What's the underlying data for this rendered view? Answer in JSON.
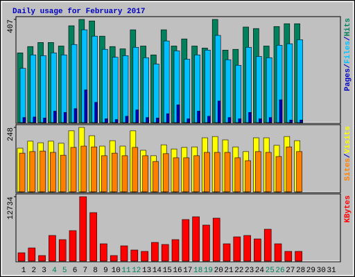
{
  "chart_data": {
    "type": "bar",
    "title": "Daily usage for February 2017",
    "categories": [
      "1",
      "2",
      "3",
      "4",
      "5",
      "6",
      "7",
      "8",
      "9",
      "10",
      "11",
      "12",
      "13",
      "14",
      "15",
      "16",
      "17",
      "18",
      "19",
      "20",
      "21",
      "22",
      "23",
      "24",
      "25",
      "26",
      "27",
      "28",
      "29",
      "30",
      "31"
    ],
    "category_colors": [
      "#000000",
      "#000000",
      "#000000",
      "#00805c",
      "#00805c",
      "#000000",
      "#000000",
      "#000000",
      "#000000",
      "#000000",
      "#00805c",
      "#00805c",
      "#000000",
      "#000000",
      "#000000",
      "#000000",
      "#000000",
      "#00805c",
      "#00805c",
      "#000000",
      "#000000",
      "#000000",
      "#000000",
      "#000000",
      "#00805c",
      "#00805c",
      "#000000",
      "#000000",
      "#000000",
      "#000000",
      "#000000"
    ],
    "legend_separator": "/",
    "panels": [
      {
        "ylim": [
          0,
          407
        ],
        "yticks": [
          407
        ],
        "series": [
          {
            "name": "Pages",
            "color": "#0000c0",
            "values": [
              20,
              22,
              18,
              45,
              40,
              55,
              129,
              80,
              15,
              12,
              25,
              50,
              20,
              18,
              35,
              70,
              15,
              45,
              25,
              85,
              20,
              15,
              40,
              15,
              20,
              90,
              10,
              10,
              null,
              null,
              null
            ]
          },
          {
            "name": "Files",
            "color": "#00c0ff",
            "values": [
              214,
              267,
              264,
              275,
              267,
              308,
              366,
              341,
              289,
              258,
              264,
              297,
              256,
              231,
              322,
              283,
              250,
              267,
              286,
              344,
              248,
              226,
              297,
              261,
              256,
              305,
              311,
              327,
              null,
              null,
              null
            ]
          },
          {
            "name": "Hits",
            "color": "#00805c",
            "values": [
              275,
              300,
              316,
              316,
              302,
              382,
              407,
              401,
              341,
              300,
              291,
              366,
              302,
              267,
              366,
              302,
              330,
              302,
              294,
              407,
              286,
              289,
              377,
              371,
              302,
              379,
              390,
              390,
              null,
              null,
              null
            ]
          }
        ]
      },
      {
        "ylim": [
          0,
          248
        ],
        "yticks": [
          248
        ],
        "series": [
          {
            "name": "Sites",
            "color": "#ff8000",
            "values": [
              149,
              155,
              157,
              152,
              141,
              171,
              176,
              173,
              139,
              149,
              139,
              171,
              139,
              117,
              147,
              131,
              131,
              139,
              152,
              152,
              152,
              131,
              120,
              155,
              152,
              136,
              173,
              155,
              null,
              null,
              null
            ]
          },
          {
            "name": "Visits",
            "color": "#ffff00",
            "values": [
              168,
              195,
              189,
              195,
              187,
              235,
              248,
              216,
              176,
              197,
              176,
              235,
              160,
              139,
              181,
              165,
              171,
              173,
              208,
              213,
              200,
              173,
              155,
              208,
              208,
              179,
              213,
              197,
              null,
              null,
              null
            ]
          }
        ]
      },
      {
        "ylim": [
          0,
          12734
        ],
        "yticks": [
          12734
        ],
        "series": [
          {
            "name": "KBytes",
            "color": "#ff0000",
            "values": [
              1643,
              2602,
              1095,
              5066,
              4245,
              6025,
              12734,
              9585,
              3423,
              1095,
              3012,
              2191,
              1917,
              3697,
              3286,
              4245,
              8215,
              8763,
              7120,
              8489,
              3423,
              4792,
              5066,
              4382,
              6299,
              3423,
              1917,
              1917,
              null,
              null,
              null
            ]
          }
        ]
      }
    ]
  }
}
